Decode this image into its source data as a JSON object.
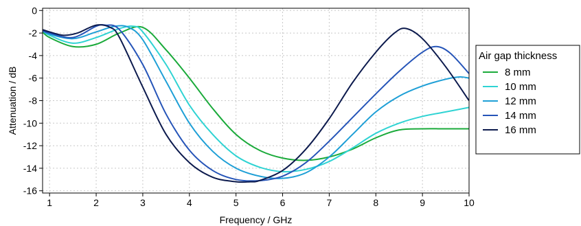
{
  "chart_data": {
    "type": "line",
    "xlabel": "Frequency / GHz",
    "ylabel": "Attenuation / dB",
    "xlim": [
      0.85,
      10
    ],
    "ylim": [
      -16.2,
      0.2
    ],
    "xticks": [
      "1",
      "2",
      "3",
      "4",
      "5",
      "6",
      "7",
      "8",
      "9",
      "10"
    ],
    "yticks": [
      "0",
      "-2",
      "-4",
      "-6",
      "-8",
      "-10",
      "-12",
      "-14",
      "-16"
    ],
    "grid": true,
    "legend_title": "Air gap thickness",
    "legend_position": "right",
    "series": [
      {
        "name": "8 mm",
        "color": "#1aaa3a",
        "x": [
          0.85,
          1.0,
          1.5,
          2.0,
          2.5,
          3.0,
          3.5,
          4.0,
          4.5,
          5.0,
          5.5,
          6.0,
          6.5,
          7.0,
          7.5,
          8.0,
          8.5,
          9.0,
          9.5,
          10.0
        ],
        "y": [
          -1.9,
          -2.4,
          -3.2,
          -3.0,
          -2.0,
          -1.5,
          -3.5,
          -6.0,
          -8.7,
          -11.0,
          -12.4,
          -13.1,
          -13.3,
          -13.0,
          -12.3,
          -11.3,
          -10.6,
          -10.5,
          -10.5,
          -10.5
        ]
      },
      {
        "name": "10 mm",
        "color": "#2fd3d3",
        "x": [
          0.85,
          1.0,
          1.5,
          2.0,
          2.5,
          2.8,
          3.0,
          3.5,
          4.0,
          4.5,
          5.0,
          5.5,
          6.0,
          6.5,
          7.0,
          7.5,
          8.0,
          8.5,
          9.0,
          9.5,
          10.0
        ],
        "y": [
          -1.8,
          -2.2,
          -2.9,
          -2.4,
          -1.6,
          -1.4,
          -1.9,
          -4.8,
          -8.4,
          -11.0,
          -12.9,
          -13.9,
          -14.3,
          -14.1,
          -13.4,
          -12.2,
          -10.9,
          -10.0,
          -9.4,
          -9.0,
          -8.6
        ]
      },
      {
        "name": "12 mm",
        "color": "#1e9fd6",
        "x": [
          0.85,
          1.0,
          1.5,
          2.0,
          2.4,
          2.7,
          3.0,
          3.5,
          4.0,
          4.5,
          5.0,
          5.5,
          6.0,
          6.5,
          7.0,
          7.5,
          8.0,
          8.5,
          9.0,
          9.5,
          9.8,
          10.0
        ],
        "y": [
          -1.8,
          -2.1,
          -2.5,
          -1.9,
          -1.4,
          -1.5,
          -2.6,
          -6.3,
          -10.0,
          -12.5,
          -14.0,
          -14.7,
          -14.9,
          -14.4,
          -13.0,
          -11.0,
          -9.0,
          -7.6,
          -6.7,
          -6.1,
          -5.9,
          -6.0
        ]
      },
      {
        "name": "14 mm",
        "color": "#2554b8",
        "x": [
          0.85,
          1.0,
          1.5,
          2.0,
          2.2,
          2.5,
          3.0,
          3.5,
          4.0,
          4.5,
          5.0,
          5.5,
          6.0,
          6.5,
          7.0,
          7.5,
          8.0,
          8.5,
          9.0,
          9.3,
          9.6,
          10.0
        ],
        "y": [
          -1.8,
          -2.0,
          -2.4,
          -1.4,
          -1.3,
          -1.7,
          -4.8,
          -9.2,
          -12.4,
          -14.2,
          -15.0,
          -15.1,
          -14.7,
          -13.5,
          -11.6,
          -9.5,
          -7.4,
          -5.4,
          -3.7,
          -3.2,
          -3.8,
          -5.6
        ]
      },
      {
        "name": "16 mm",
        "color": "#0c1a4d",
        "x": [
          0.85,
          1.0,
          1.3,
          1.6,
          2.0,
          2.3,
          2.5,
          3.0,
          3.5,
          4.0,
          4.5,
          5.0,
          5.3,
          5.5,
          6.0,
          6.5,
          7.0,
          7.5,
          8.0,
          8.4,
          8.65,
          9.0,
          9.5,
          10.0
        ],
        "y": [
          -1.7,
          -1.9,
          -2.2,
          -2.0,
          -1.3,
          -1.5,
          -2.4,
          -6.8,
          -11.0,
          -13.5,
          -14.8,
          -15.2,
          -15.2,
          -15.1,
          -14.2,
          -12.3,
          -9.6,
          -6.4,
          -3.7,
          -2.0,
          -1.6,
          -2.5,
          -5.0,
          -8.0
        ]
      }
    ]
  }
}
